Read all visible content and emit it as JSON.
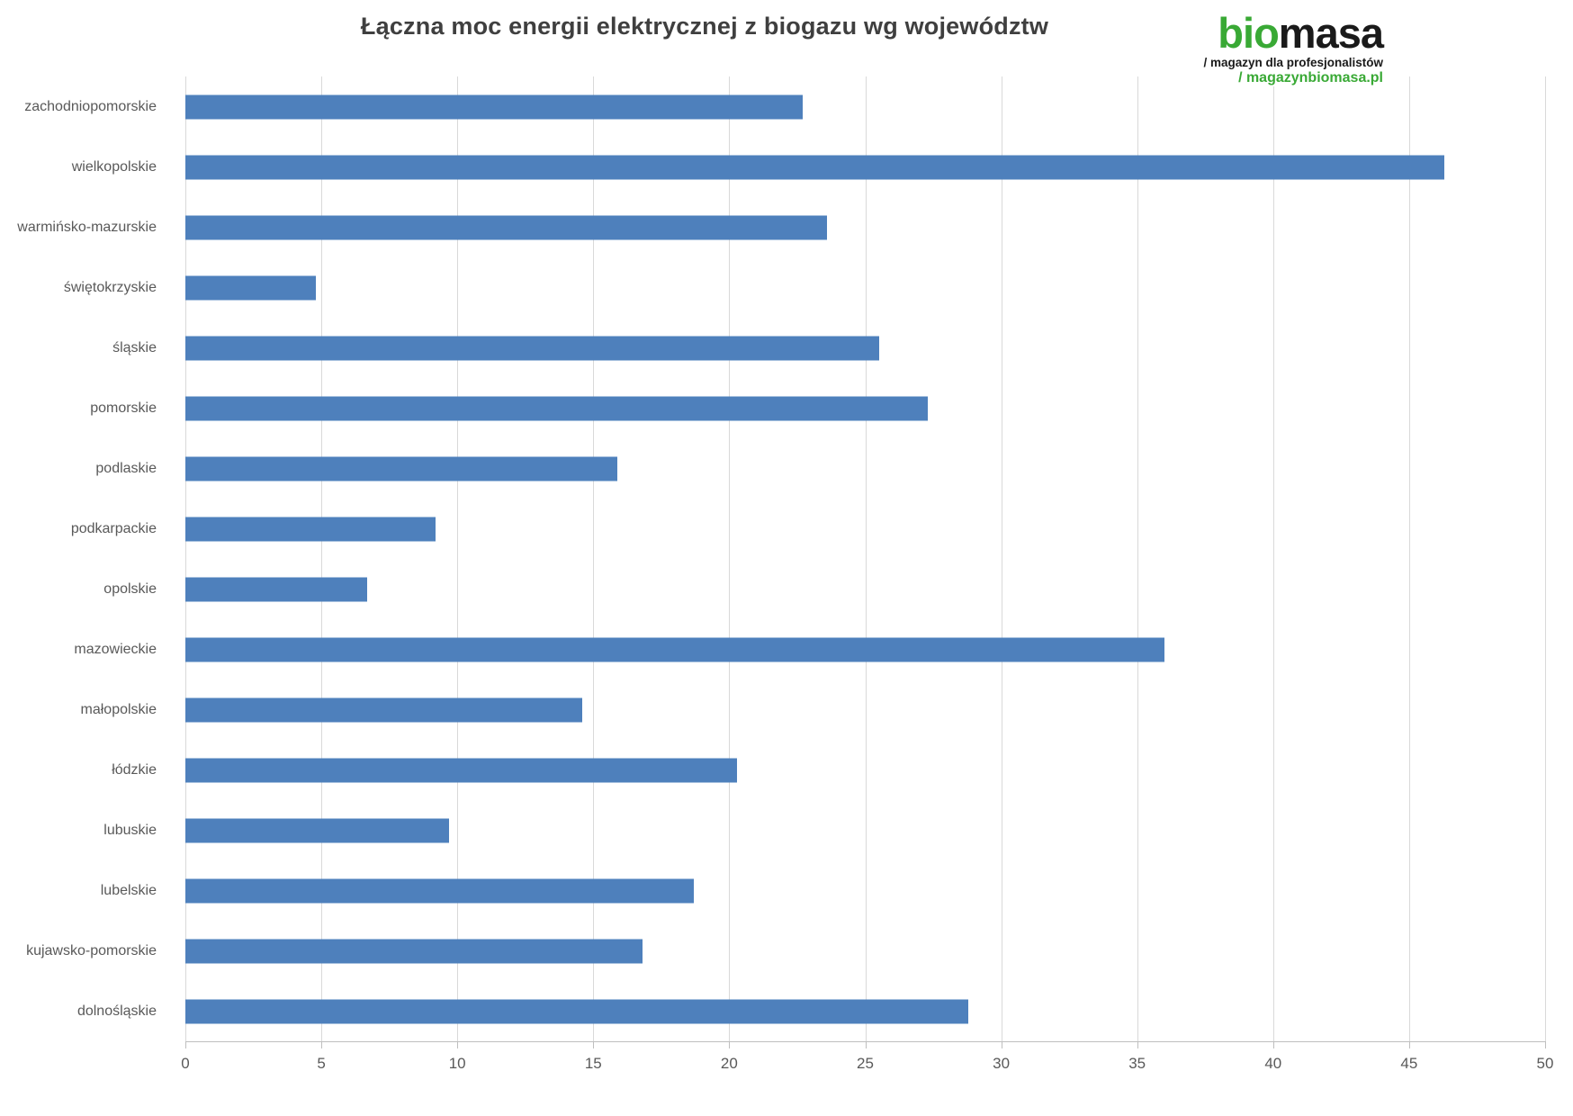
{
  "title": "Łączna moc energii elektrycznej z biogazu wg województw",
  "logo": {
    "brand_prefix": "bio",
    "brand_suffix": "masa",
    "tagline1": "/ magazyn dla profesjonalistów",
    "tagline2": "/ magazynbiomasa.pl"
  },
  "colors": {
    "bar": "#4e80bc",
    "gridline": "#d9d9d9",
    "axis_line": "#bfbfbf",
    "title_text": "#3f3f3f",
    "label_text": "#595959",
    "logo_green": "#39a935",
    "logo_black": "#1a1a1a"
  },
  "chart_data": {
    "type": "bar",
    "orientation": "horizontal",
    "title": "Łączna moc energii elektrycznej z biogazu wg województw",
    "categories": [
      "zachodniopomorskie",
      "wielkopolskie",
      "warmińsko-mazurskie",
      "świętokrzyskie",
      "śląskie",
      "pomorskie",
      "podlaskie",
      "podkarpackie",
      "opolskie",
      "mazowieckie",
      "małopolskie",
      "łódzkie",
      "lubuskie",
      "lubelskie",
      "kujawsko-pomorskie",
      "dolnośląskie"
    ],
    "values": [
      22.7,
      46.3,
      23.6,
      4.8,
      25.5,
      27.3,
      15.9,
      9.2,
      6.7,
      36.0,
      14.6,
      20.3,
      9.7,
      18.7,
      16.8,
      28.8
    ],
    "xlabel": "",
    "ylabel": "",
    "xlim": [
      0,
      50
    ],
    "xticks": [
      0,
      5,
      10,
      15,
      20,
      25,
      30,
      35,
      40,
      45,
      50
    ],
    "grid": true,
    "legend": false
  }
}
